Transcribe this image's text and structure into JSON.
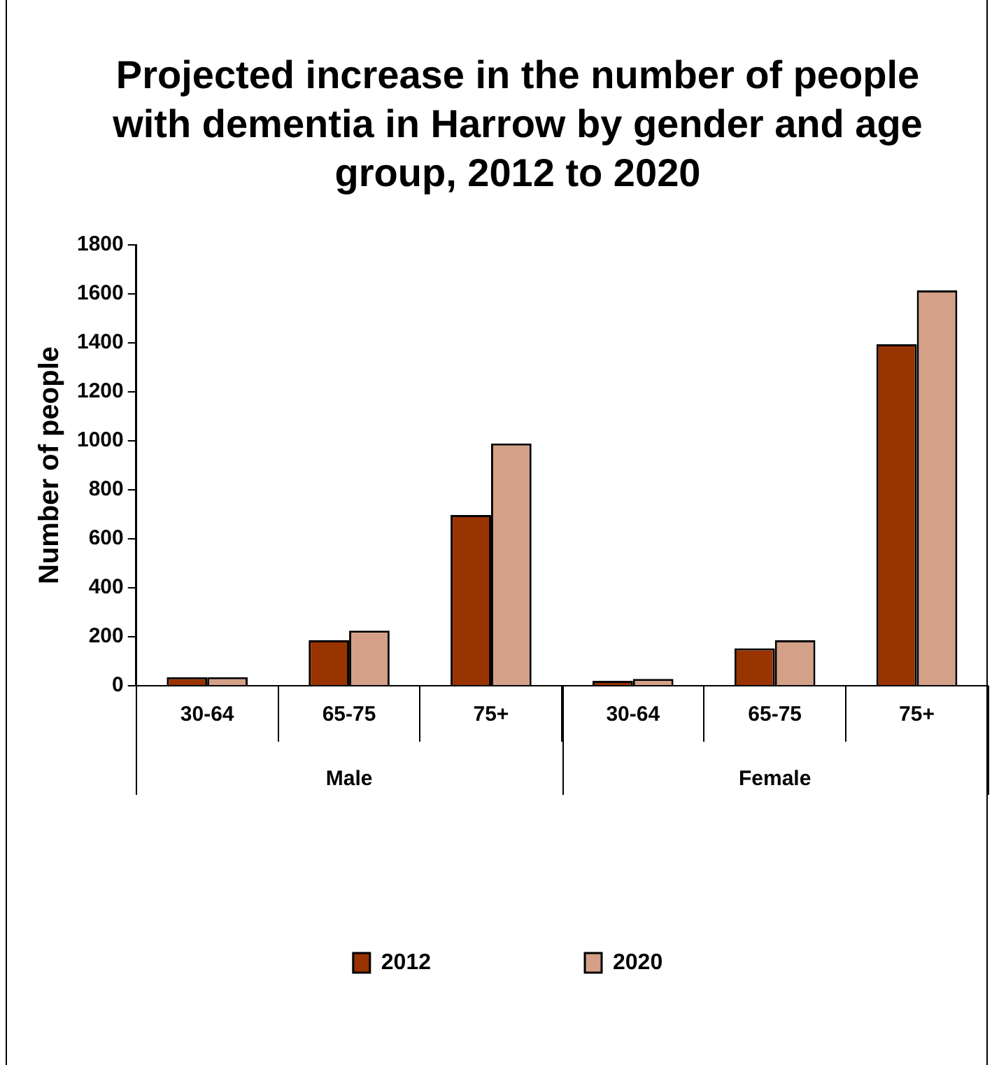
{
  "chart_data": {
    "type": "bar",
    "title": "Projected increase in the number of people with dementia in Harrow by gender and age group, 2012 to 2020",
    "ylabel": "Number of people",
    "categories": [
      "30-64",
      "65-75",
      "75+",
      "30-64",
      "65-75",
      "75+"
    ],
    "annotations": [
      "Male",
      "Female"
    ],
    "series": [
      {
        "name": "2012",
        "color": "#993300",
        "values": [
          35,
          186,
          697,
          20,
          153,
          1394
        ]
      },
      {
        "name": "2020",
        "color": "#d4a088",
        "values": [
          35,
          225,
          989,
          28,
          186,
          1614
        ]
      }
    ],
    "ylim": [
      0,
      1800
    ],
    "yticks": [
      0,
      200,
      400,
      600,
      800,
      1000,
      1200,
      1400,
      1600,
      1800
    ],
    "grid": false,
    "legend": "bottom"
  }
}
